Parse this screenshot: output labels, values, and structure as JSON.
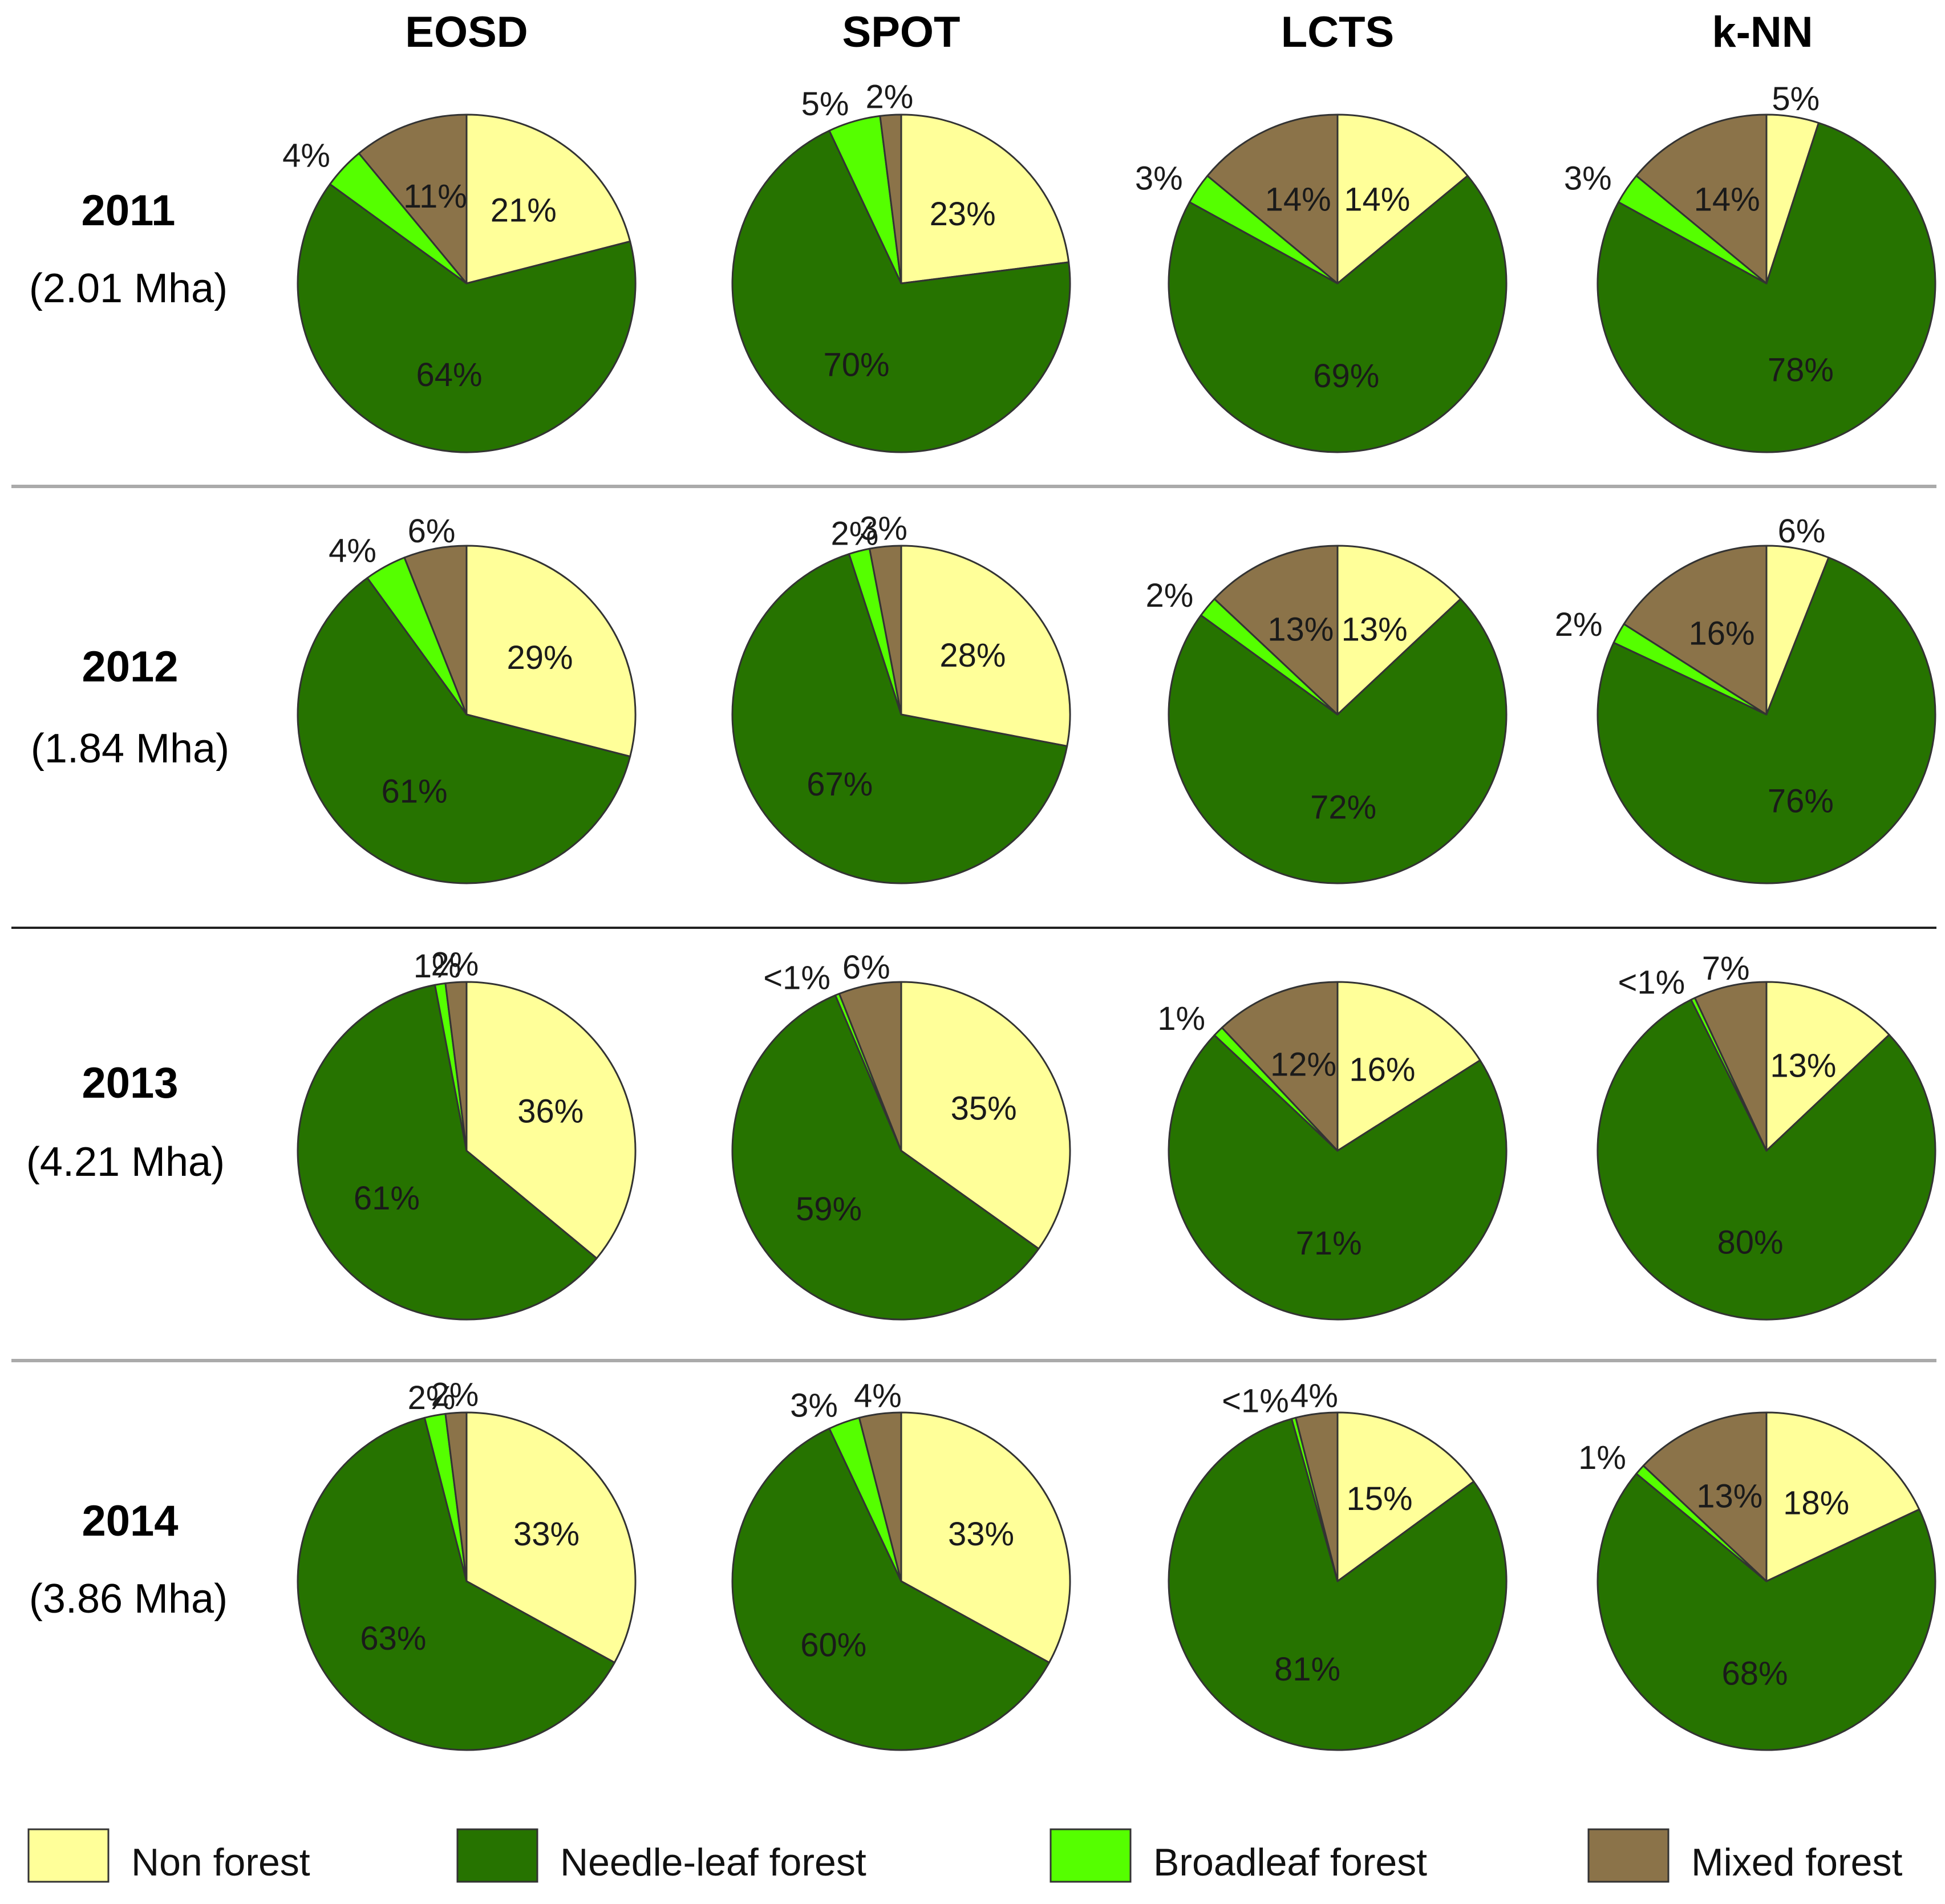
{
  "chart_data": {
    "type": "pie",
    "title": "",
    "categories": [
      "Non forest",
      "Needle-leaf forest",
      "Broadleaf forest",
      "Mixed forest"
    ],
    "colors": {
      "Non forest": "#ffff99",
      "Needle-leaf forest": "#267300",
      "Broadleaf forest": "#55ff00",
      "Mixed forest": "#8b7349"
    },
    "columns": [
      "EOSD",
      "SPOT",
      "LCTS",
      "k-NN"
    ],
    "rows": [
      {
        "year": "2011",
        "area": "(2.01 Mha)",
        "pies": [
          {
            "values": [
              21,
              64,
              4,
              11
            ],
            "labels": [
              "21%",
              "64%",
              "4%",
              "11%"
            ]
          },
          {
            "values": [
              23,
              70,
              5,
              2
            ],
            "labels": [
              "23%",
              "70%",
              "5%",
              "2%"
            ]
          },
          {
            "values": [
              14,
              69,
              3,
              14
            ],
            "labels": [
              "14%",
              "69%",
              "3%",
              "14%"
            ]
          },
          {
            "values": [
              5,
              78,
              3,
              14
            ],
            "labels": [
              "5%",
              "78%",
              "3%",
              "14%"
            ]
          }
        ]
      },
      {
        "year": "2012",
        "area": "(1.84 Mha)",
        "pies": [
          {
            "values": [
              29,
              61,
              4,
              6
            ],
            "labels": [
              "29%",
              "61%",
              "4%",
              "6%"
            ]
          },
          {
            "values": [
              28,
              67,
              2,
              3
            ],
            "labels": [
              "28%",
              "67%",
              "2%",
              "3%"
            ]
          },
          {
            "values": [
              13,
              72,
              2,
              13
            ],
            "labels": [
              "13%",
              "72%",
              "2%",
              "13%"
            ]
          },
          {
            "values": [
              6,
              76,
              2,
              16
            ],
            "labels": [
              "6%",
              "76%",
              "2%",
              "16%"
            ]
          }
        ]
      },
      {
        "year": "2013",
        "area": "(4.21 Mha)",
        "pies": [
          {
            "values": [
              36,
              61,
              1,
              2
            ],
            "labels": [
              "36%",
              "61%",
              "1%",
              "2%"
            ]
          },
          {
            "values": [
              35,
              59,
              0.4,
              6
            ],
            "labels": [
              "35%",
              "59%",
              "<1%",
              "6%"
            ]
          },
          {
            "values": [
              16,
              71,
              1,
              12
            ],
            "labels": [
              "16%",
              "71%",
              "1%",
              "12%"
            ]
          },
          {
            "values": [
              13,
              80,
              0.4,
              7
            ],
            "labels": [
              "13%",
              "80%",
              "<1%",
              "7%"
            ]
          }
        ]
      },
      {
        "year": "2014",
        "area": "(3.86 Mha)",
        "pies": [
          {
            "values": [
              33,
              63,
              2,
              2
            ],
            "labels": [
              "33%",
              "63%",
              "2%",
              "2%"
            ]
          },
          {
            "values": [
              33,
              60,
              3,
              4
            ],
            "labels": [
              "33%",
              "60%",
              "3%",
              "4%"
            ]
          },
          {
            "values": [
              15,
              81,
              0.4,
              4
            ],
            "labels": [
              "15%",
              "81%",
              "<1%",
              "4%"
            ]
          },
          {
            "values": [
              18,
              68,
              1,
              13
            ],
            "labels": [
              "18%",
              "68%",
              "1%",
              "13%"
            ]
          }
        ]
      }
    ],
    "legend": {
      "position": "bottom",
      "items": [
        "Non forest",
        "Needle-leaf forest",
        "Broadleaf forest",
        "Mixed forest"
      ]
    }
  }
}
